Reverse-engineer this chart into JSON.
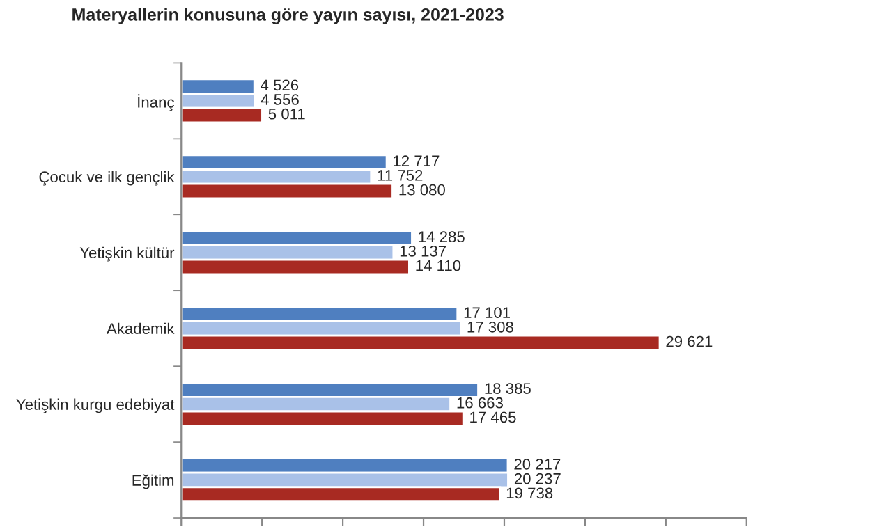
{
  "chart_data": {
    "type": "bar",
    "orientation": "horizontal",
    "title": "Materyallerin konusuna göre yayın sayısı, 2021-2023",
    "categories": [
      "İnanç",
      "Çocuk ve ilk gençlik",
      "Yetişkin kültür",
      "Akademik",
      "Yetişkin kurgu edebiyat",
      "Eğitim"
    ],
    "series": [
      {
        "color": "#4f7fc0",
        "values": [
          4526,
          12717,
          14285,
          17101,
          18385,
          20217
        ],
        "value_labels": [
          "4 526",
          "12 717",
          "14 285",
          "17 101",
          "18 385",
          "20 217"
        ]
      },
      {
        "color": "#a9c1e8",
        "values": [
          4556,
          11752,
          13137,
          17308,
          16663,
          20237
        ],
        "value_labels": [
          "4 556",
          "11 752",
          "13 137",
          "17 308",
          "16 663",
          "20 237"
        ]
      },
      {
        "color": "#a82a22",
        "values": [
          5011,
          13080,
          14110,
          29621,
          17465,
          19738
        ],
        "value_labels": [
          "5 011",
          "13 080",
          "14 110",
          "29 621",
          "17 465",
          "19 738"
        ]
      }
    ],
    "xlim": [
      0,
      35000
    ],
    "xticks": [
      {
        "value": 0,
        "label": null
      },
      {
        "value": 5000,
        "label": null
      },
      {
        "value": 10000,
        "label": null
      },
      {
        "value": 15000,
        "label": null
      },
      {
        "value": 20000,
        "label": null
      },
      {
        "value": 25000,
        "label": null
      },
      {
        "value": 30000,
        "label": null
      },
      {
        "value": 35000,
        "label": null
      }
    ],
    "tick_labels": "y",
    "grid": false,
    "legend": false
  }
}
